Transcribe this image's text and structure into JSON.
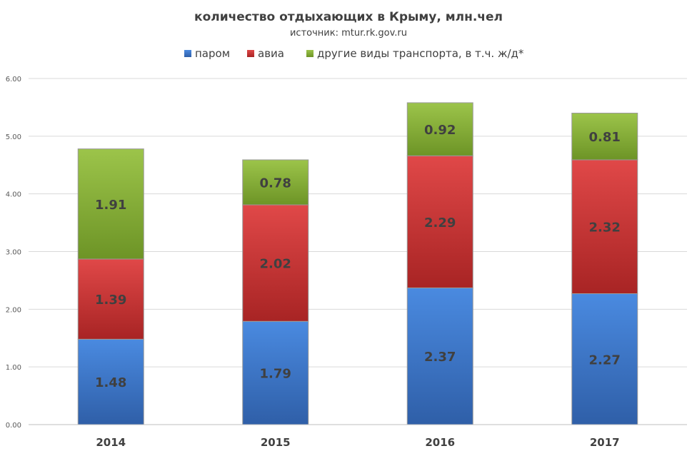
{
  "chart_data": {
    "type": "bar",
    "stacked": true,
    "title": "количество отдыхающих в Крыму, млн.чел",
    "subtitle": "источник: mtur.rk.gov.ru",
    "categories": [
      "2014",
      "2015",
      "2016",
      "2017"
    ],
    "series": [
      {
        "name": "паром",
        "color": "#3f7fd6",
        "values": [
          1.48,
          1.79,
          2.37,
          2.27
        ]
      },
      {
        "name": "авиа",
        "color": "#d23a3a",
        "values": [
          1.39,
          2.02,
          2.29,
          2.32
        ]
      },
      {
        "name": "другие виды транспорта, в т.ч. ж/д*",
        "color": "#86b03a",
        "values": [
          1.91,
          0.78,
          0.92,
          0.81
        ]
      }
    ],
    "ylim": [
      0,
      6
    ],
    "yticks": [
      "0.00",
      "1.00",
      "2.00",
      "3.00",
      "4.00",
      "5.00",
      "6.00"
    ],
    "grid": true,
    "legend_position": "top"
  }
}
